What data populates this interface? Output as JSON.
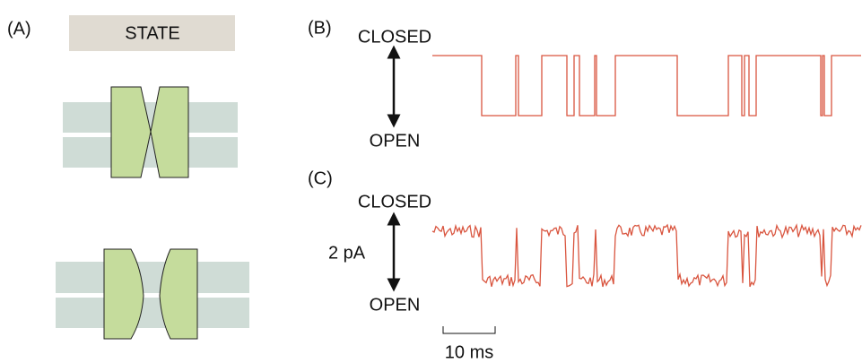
{
  "panel_a": {
    "label": "(A)",
    "state_header": "STATE"
  },
  "panel_b": {
    "label": "(B)",
    "top_label": "CLOSED",
    "bottom_label": "OPEN"
  },
  "panel_c": {
    "label": "(C)",
    "top_label": "CLOSED",
    "amplitude_label": "2 pA",
    "bottom_label": "OPEN",
    "time_scale_label": "10 ms"
  }
}
